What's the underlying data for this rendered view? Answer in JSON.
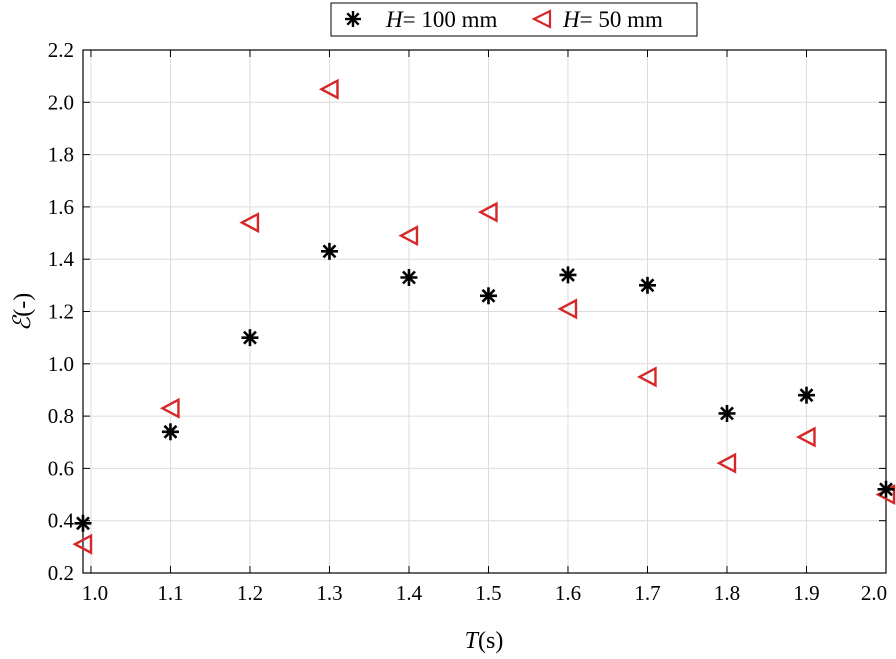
{
  "chart_data": {
    "type": "scatter",
    "title": "",
    "xlabel_symbol": "T",
    "xlabel_unit": "(s)",
    "ylabel_symbol": "ℰ",
    "ylabel_unit": "(-)",
    "xlim": [
      0.99,
      2.0
    ],
    "ylim": [
      0.2,
      2.2
    ],
    "x_ticks": [
      "1.0",
      "1.1",
      "1.2",
      "1.3",
      "1.4",
      "1.5",
      "1.6",
      "1.7",
      "1.8",
      "1.9",
      "2.0"
    ],
    "x_tick_values": [
      1.0,
      1.1,
      1.2,
      1.3,
      1.4,
      1.5,
      1.6,
      1.7,
      1.8,
      1.9,
      2.0
    ],
    "y_ticks": [
      "0.2",
      "0.4",
      "0.6",
      "0.8",
      "1.0",
      "1.2",
      "1.4",
      "1.6",
      "1.8",
      "2.0",
      "2.2"
    ],
    "y_tick_values": [
      0.2,
      0.4,
      0.6,
      0.8,
      1.0,
      1.2,
      1.4,
      1.6,
      1.8,
      2.0,
      2.2
    ],
    "grid": true,
    "legend_placement": "top-center, outside",
    "series": [
      {
        "name_symbol": "H",
        "name_rest": "= 100 mm",
        "marker": "asterisk",
        "color": "#000000",
        "x": [
          0.99,
          1.1,
          1.2,
          1.3,
          1.4,
          1.5,
          1.6,
          1.7,
          1.8,
          1.9,
          2.0
        ],
        "y": [
          0.39,
          0.74,
          1.1,
          1.43,
          1.33,
          1.26,
          1.34,
          1.3,
          0.81,
          0.88,
          0.52
        ]
      },
      {
        "name_symbol": "H",
        "name_rest": "= 50 mm",
        "marker": "triangle-left",
        "color": "#d62728",
        "x": [
          0.99,
          1.1,
          1.2,
          1.3,
          1.4,
          1.5,
          1.6,
          1.7,
          1.8,
          1.9,
          2.0
        ],
        "y": [
          0.31,
          0.83,
          1.54,
          2.05,
          1.49,
          1.58,
          1.21,
          0.95,
          0.62,
          0.72,
          0.5
        ]
      }
    ]
  }
}
